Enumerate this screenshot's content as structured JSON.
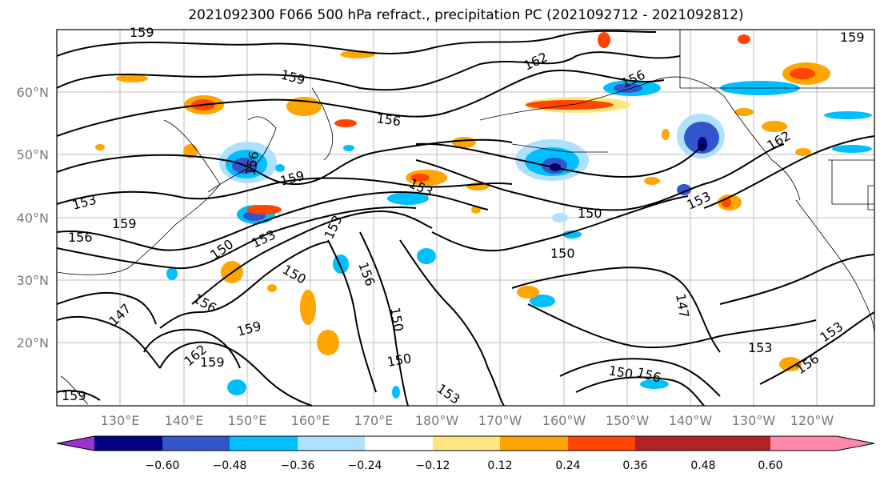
{
  "title": "2021092300 F066 500 hPa refract., precipitation PC (2021092712 - 2021092812)",
  "map": {
    "lat_labels": [
      "60°N",
      "50°N",
      "40°N",
      "30°N",
      "20°N"
    ],
    "lon_labels": [
      "130°E",
      "140°E",
      "150°E",
      "160°E",
      "170°E",
      "180°W",
      "170°W",
      "160°W",
      "150°W",
      "140°W",
      "130°W",
      "120°W"
    ],
    "contour_labels": [
      "159",
      "159",
      "162",
      "156",
      "159",
      "156",
      "159",
      "153",
      "156",
      "159",
      "156",
      "153",
      "150",
      "153",
      "150",
      "153",
      "150",
      "156",
      "150",
      "147",
      "150",
      "156",
      "153",
      "147",
      "159",
      "162",
      "159",
      "150",
      "153",
      "150",
      "156",
      "153",
      "153",
      "156",
      "162",
      "159"
    ]
  },
  "colorbar": {
    "colors": [
      "#9933cc",
      "#000080",
      "#3355cc",
      "#00bfff",
      "#aee0ff",
      "#ffffff",
      "#ffe680",
      "#ffa500",
      "#ff4500",
      "#b22222",
      "#ff88aa"
    ],
    "ticks": [
      "−0.60",
      "−0.48",
      "−0.36",
      "−0.24",
      "−0.12",
      "0.12",
      "0.24",
      "0.36",
      "0.48",
      "0.60"
    ]
  }
}
